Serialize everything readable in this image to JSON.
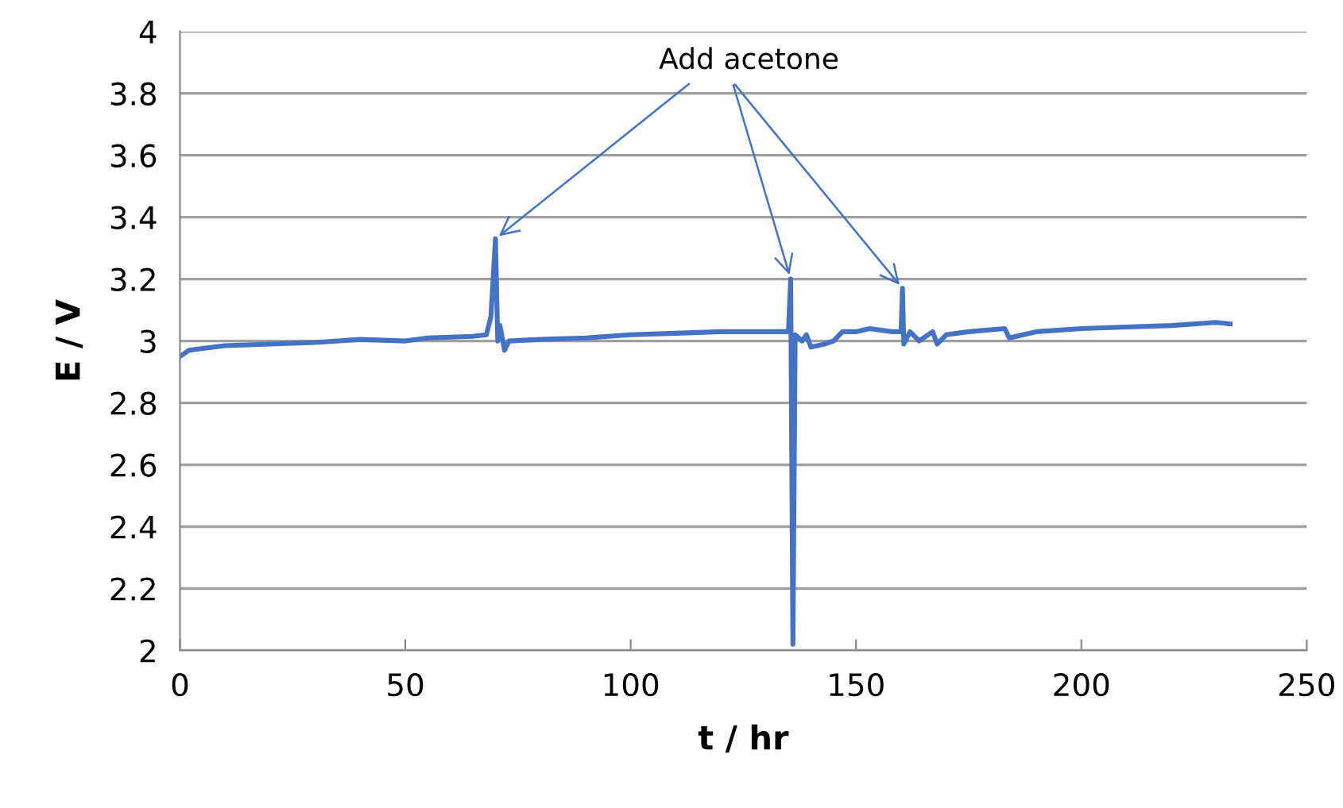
{
  "chart_data": {
    "type": "line",
    "xlabel": "t / hr",
    "ylabel": "E / V",
    "xlim": [
      0,
      250
    ],
    "xticks": [
      0,
      50,
      100,
      150,
      200,
      250
    ],
    "ylim": [
      2,
      4
    ],
    "yticks": [
      2,
      {
        "value": 2.2,
        "label": "2.2"
      },
      {
        "value": 2.4,
        "label": "2.4"
      },
      {
        "value": 2.6,
        "label": "2.6"
      },
      {
        "value": 2.8,
        "label": "2.8"
      },
      3,
      {
        "value": 3.2,
        "label": "3.2"
      },
      {
        "value": 3.4,
        "label": "3.4"
      },
      {
        "value": 3.6,
        "label": "3.6"
      },
      {
        "value": 3.8,
        "label": "3.8"
      },
      4
    ],
    "grid": "y",
    "marker": "none",
    "line_style": "solid",
    "annotations": [
      {
        "text": "Add acetone",
        "x": 70,
        "y": 3.33
      }
    ],
    "series": [
      {
        "color": "#4472c4",
        "x": [
          0,
          2,
          10,
          20,
          30,
          40,
          50,
          55,
          65,
          68,
          69,
          70,
          70.5,
          71,
          72,
          73,
          80,
          90,
          100,
          110,
          120,
          130,
          135,
          135.5,
          136,
          136.5,
          138,
          139,
          140,
          143,
          145,
          147,
          150,
          153,
          158,
          160,
          160.3,
          160.6,
          162,
          164,
          167,
          168,
          170,
          175,
          183,
          184,
          190,
          200,
          210,
          220,
          230,
          233
        ],
        "values": [
          2.95,
          2.97,
          2.985,
          2.99,
          2.995,
          3.005,
          3.0,
          3.01,
          3.015,
          3.02,
          3.08,
          3.33,
          3.0,
          3.05,
          2.97,
          3.0,
          3.005,
          3.01,
          3.02,
          3.025,
          3.03,
          3.03,
          3.03,
          3.2,
          2.02,
          3.02,
          3.0,
          3.02,
          2.98,
          2.99,
          3.0,
          3.03,
          3.03,
          3.04,
          3.03,
          3.03,
          3.17,
          2.99,
          3.03,
          3.0,
          3.03,
          2.99,
          3.02,
          3.03,
          3.04,
          3.01,
          3.03,
          3.04,
          3.045,
          3.05,
          3.06,
          3.055
        ]
      }
    ]
  }
}
